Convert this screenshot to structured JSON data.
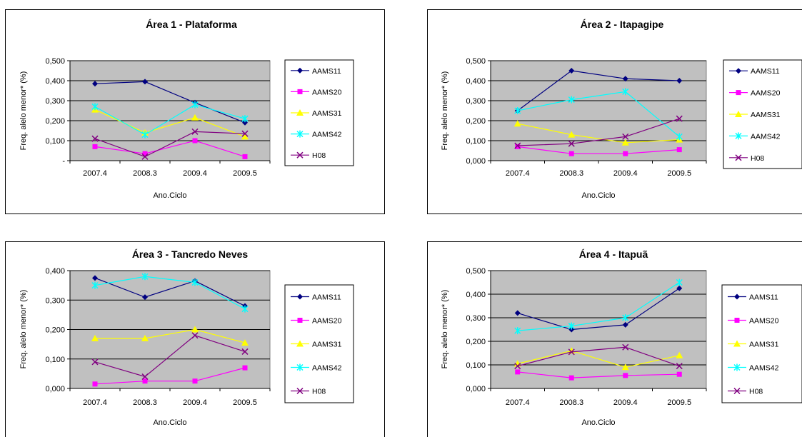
{
  "series_colors": {
    "AAMS11": "#000080",
    "AAMS20": "#FF00FF",
    "AAMS31": "#FFFF00",
    "AAMS42": "#00FFFF",
    "H08": "#800080"
  },
  "plot_background": "#C0C0C0",
  "chart_data": [
    {
      "type": "line",
      "title": "Área 1 - Plataforma",
      "xlabel": "Ano.Ciclo",
      "ylabel": "Freq. alelo menor* (%)",
      "categories": [
        "2007.4",
        "2008.3",
        "2009.4",
        "2009.5"
      ],
      "ylim": [
        0,
        0.5
      ],
      "yticks": [
        "-",
        "0,100",
        "0,200",
        "0,300",
        "0,400",
        "0,500"
      ],
      "grid": true,
      "legend": "right",
      "series": [
        {
          "name": "AAMS11",
          "values": [
            0.385,
            0.395,
            0.29,
            0.19
          ]
        },
        {
          "name": "AAMS20",
          "values": [
            0.07,
            0.035,
            0.1,
            0.02
          ]
        },
        {
          "name": "AAMS31",
          "values": [
            0.255,
            0.14,
            0.215,
            0.12
          ]
        },
        {
          "name": "AAMS42",
          "values": [
            0.27,
            0.13,
            0.28,
            0.21
          ]
        },
        {
          "name": "H08",
          "values": [
            0.11,
            0.02,
            0.145,
            0.135
          ]
        }
      ]
    },
    {
      "type": "line",
      "title": "Área 2 - Itapagipe",
      "xlabel": "Ano.Ciclo",
      "ylabel": "Freq. alelo menor* (%)",
      "categories": [
        "2007.4",
        "2008.3",
        "2009.4",
        "2009.5"
      ],
      "ylim": [
        0,
        0.5
      ],
      "yticks": [
        "0,000",
        "0,100",
        "0,200",
        "0,300",
        "0,400",
        "0,500"
      ],
      "grid": true,
      "legend": "right",
      "series": [
        {
          "name": "AAMS11",
          "values": [
            0.25,
            0.45,
            0.41,
            0.4
          ]
        },
        {
          "name": "AAMS20",
          "values": [
            0.07,
            0.035,
            0.035,
            0.055
          ]
        },
        {
          "name": "AAMS31",
          "values": [
            0.185,
            0.13,
            0.09,
            0.105
          ]
        },
        {
          "name": "AAMS42",
          "values": [
            0.25,
            0.305,
            0.345,
            0.12
          ]
        },
        {
          "name": "H08",
          "values": [
            0.075,
            0.085,
            0.12,
            0.21
          ]
        }
      ]
    },
    {
      "type": "line",
      "title": "Área 3 - Tancredo Neves",
      "xlabel": "Ano.Ciclo",
      "ylabel": "Freq. alelo menor* (%)",
      "categories": [
        "2007.4",
        "2008.3",
        "2009.4",
        "2009.5"
      ],
      "ylim": [
        0,
        0.4
      ],
      "yticks": [
        "0,000",
        "0,100",
        "0,200",
        "0,300",
        "0,400"
      ],
      "grid": true,
      "legend": "right",
      "series": [
        {
          "name": "AAMS11",
          "values": [
            0.375,
            0.31,
            0.365,
            0.28
          ]
        },
        {
          "name": "AAMS20",
          "values": [
            0.015,
            0.025,
            0.025,
            0.07
          ]
        },
        {
          "name": "AAMS31",
          "values": [
            0.17,
            0.17,
            0.2,
            0.155
          ]
        },
        {
          "name": "AAMS42",
          "values": [
            0.35,
            0.38,
            0.36,
            0.27
          ]
        },
        {
          "name": "H08",
          "values": [
            0.09,
            0.04,
            0.18,
            0.125
          ]
        }
      ]
    },
    {
      "type": "line",
      "title": "Área 4 - Itapuã",
      "xlabel": "Ano.Ciclo",
      "ylabel": "Freq. alelo menor* (%)",
      "categories": [
        "2007.4",
        "2008.3",
        "2009.4",
        "2009.5"
      ],
      "ylim": [
        0,
        0.5
      ],
      "yticks": [
        "0,000",
        "0,100",
        "0,200",
        "0,300",
        "0,400",
        "0,500"
      ],
      "grid": true,
      "legend": "right",
      "series": [
        {
          "name": "AAMS11",
          "values": [
            0.32,
            0.25,
            0.27,
            0.425
          ]
        },
        {
          "name": "AAMS20",
          "values": [
            0.07,
            0.045,
            0.055,
            0.06
          ]
        },
        {
          "name": "AAMS31",
          "values": [
            0.105,
            0.16,
            0.09,
            0.14
          ]
        },
        {
          "name": "AAMS42",
          "values": [
            0.245,
            0.265,
            0.3,
            0.45
          ]
        },
        {
          "name": "H08",
          "values": [
            0.095,
            0.155,
            0.175,
            0.095
          ]
        }
      ]
    }
  ]
}
